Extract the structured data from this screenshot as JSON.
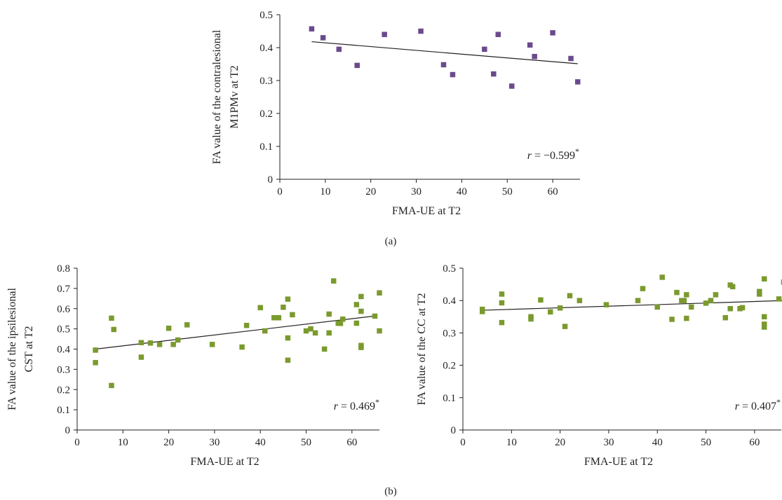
{
  "panel_labels": [
    "(a)",
    "(b)"
  ],
  "chart_data": [
    {
      "type": "scatter",
      "xlabel": "FMA-UE at T2",
      "ylabel": [
        "FA value of the contralesional",
        "M1PMv at T2"
      ],
      "xlim": [
        0,
        66
      ],
      "ylim": [
        0,
        0.5
      ],
      "xticks": [
        "0",
        "10",
        "20",
        "30",
        "40",
        "50",
        "60"
      ],
      "yticks": [
        "0",
        "0.1",
        "0.2",
        "0.3",
        "0.4",
        "0.5"
      ],
      "marker_color": "#6a4a8c",
      "trendline": {
        "x": [
          7,
          65.5
        ],
        "y": [
          0.418,
          0.351
        ]
      },
      "annotation": {
        "prefix": "r",
        "value": " = −0.599",
        "sup": "*"
      },
      "points": [
        [
          7,
          0.457
        ],
        [
          9.5,
          0.43
        ],
        [
          13,
          0.395
        ],
        [
          17,
          0.346
        ],
        [
          23,
          0.44
        ],
        [
          31,
          0.45
        ],
        [
          36,
          0.348
        ],
        [
          38,
          0.318
        ],
        [
          45,
          0.395
        ],
        [
          47,
          0.32
        ],
        [
          48,
          0.44
        ],
        [
          51,
          0.283
        ],
        [
          55,
          0.408
        ],
        [
          56,
          0.373
        ],
        [
          60,
          0.445
        ],
        [
          64,
          0.367
        ],
        [
          65.5,
          0.296
        ]
      ]
    },
    {
      "type": "scatter",
      "xlabel": "FMA-UE at T2",
      "ylabel": [
        "FA value of the ipsilesional",
        "CST at T2"
      ],
      "xlim": [
        0,
        66
      ],
      "ylim": [
        0,
        0.8
      ],
      "xticks": [
        "0",
        "10",
        "20",
        "30",
        "40",
        "50",
        "60"
      ],
      "yticks": [
        "0",
        "0.1",
        "0.2",
        "0.3",
        "0.4",
        "0.5",
        "0.6",
        "0.7",
        "0.8"
      ],
      "marker_color": "#7a9a2e",
      "trendline": {
        "x": [
          4,
          65.5
        ],
        "y": [
          0.4,
          0.565
        ]
      },
      "annotation": {
        "prefix": "r",
        "value": " = 0.469",
        "sup": "*"
      },
      "points": [
        [
          4,
          0.395
        ],
        [
          4,
          0.333
        ],
        [
          7.5,
          0.22
        ],
        [
          7.5,
          0.553
        ],
        [
          8,
          0.497
        ],
        [
          14,
          0.432
        ],
        [
          14,
          0.36
        ],
        [
          16,
          0.43
        ],
        [
          18,
          0.423
        ],
        [
          20,
          0.503
        ],
        [
          21,
          0.423
        ],
        [
          22,
          0.445
        ],
        [
          24,
          0.52
        ],
        [
          29.5,
          0.423
        ],
        [
          36,
          0.41
        ],
        [
          37,
          0.517
        ],
        [
          40,
          0.605
        ],
        [
          41,
          0.49
        ],
        [
          43,
          0.555
        ],
        [
          44,
          0.555
        ],
        [
          45,
          0.607
        ],
        [
          46,
          0.647
        ],
        [
          46,
          0.455
        ],
        [
          46,
          0.345
        ],
        [
          47,
          0.57
        ],
        [
          50,
          0.49
        ],
        [
          51,
          0.5
        ],
        [
          52,
          0.48
        ],
        [
          54,
          0.4
        ],
        [
          55,
          0.573
        ],
        [
          55,
          0.48
        ],
        [
          56,
          0.737
        ],
        [
          57,
          0.528
        ],
        [
          57.5,
          0.527
        ],
        [
          58,
          0.548
        ],
        [
          61,
          0.62
        ],
        [
          61,
          0.528
        ],
        [
          62,
          0.66
        ],
        [
          62,
          0.587
        ],
        [
          62,
          0.418
        ],
        [
          62,
          0.408
        ],
        [
          65,
          0.563
        ],
        [
          66,
          0.678
        ],
        [
          66,
          0.49
        ]
      ]
    },
    {
      "type": "scatter",
      "xlabel": "FMA-UE at T2",
      "ylabel": [
        "FA value of the CC at T2"
      ],
      "xlim": [
        0,
        66
      ],
      "ylim": [
        0,
        0.5
      ],
      "xticks": [
        "0",
        "10",
        "20",
        "30",
        "40",
        "50",
        "60"
      ],
      "yticks": [
        "0",
        "0.1",
        "0.2",
        "0.3",
        "0.4",
        "0.5"
      ],
      "marker_color": "#7a9a2e",
      "trendline": {
        "x": [
          4,
          66
        ],
        "y": [
          0.37,
          0.4
        ]
      },
      "annotation": {
        "prefix": "r",
        "value": " = 0.407",
        "sup": "*"
      },
      "points": [
        [
          4,
          0.373
        ],
        [
          4,
          0.366
        ],
        [
          8,
          0.42
        ],
        [
          8,
          0.393
        ],
        [
          8,
          0.332
        ],
        [
          14,
          0.35
        ],
        [
          14,
          0.343
        ],
        [
          16,
          0.402
        ],
        [
          18,
          0.365
        ],
        [
          20,
          0.377
        ],
        [
          21,
          0.32
        ],
        [
          22,
          0.415
        ],
        [
          24,
          0.4
        ],
        [
          29.5,
          0.387
        ],
        [
          36,
          0.4
        ],
        [
          37,
          0.437
        ],
        [
          40,
          0.38
        ],
        [
          41,
          0.472
        ],
        [
          43,
          0.342
        ],
        [
          44,
          0.425
        ],
        [
          45,
          0.4
        ],
        [
          45.5,
          0.4
        ],
        [
          46,
          0.418
        ],
        [
          46,
          0.345
        ],
        [
          47,
          0.38
        ],
        [
          50,
          0.392
        ],
        [
          51,
          0.4
        ],
        [
          52,
          0.418
        ],
        [
          54,
          0.347
        ],
        [
          55,
          0.448
        ],
        [
          55,
          0.375
        ],
        [
          55.5,
          0.443
        ],
        [
          57,
          0.375
        ],
        [
          57.5,
          0.378
        ],
        [
          61,
          0.428
        ],
        [
          61,
          0.42
        ],
        [
          62,
          0.467
        ],
        [
          62,
          0.35
        ],
        [
          62,
          0.327
        ],
        [
          62,
          0.318
        ],
        [
          65,
          0.405
        ],
        [
          66,
          0.457
        ]
      ]
    }
  ]
}
